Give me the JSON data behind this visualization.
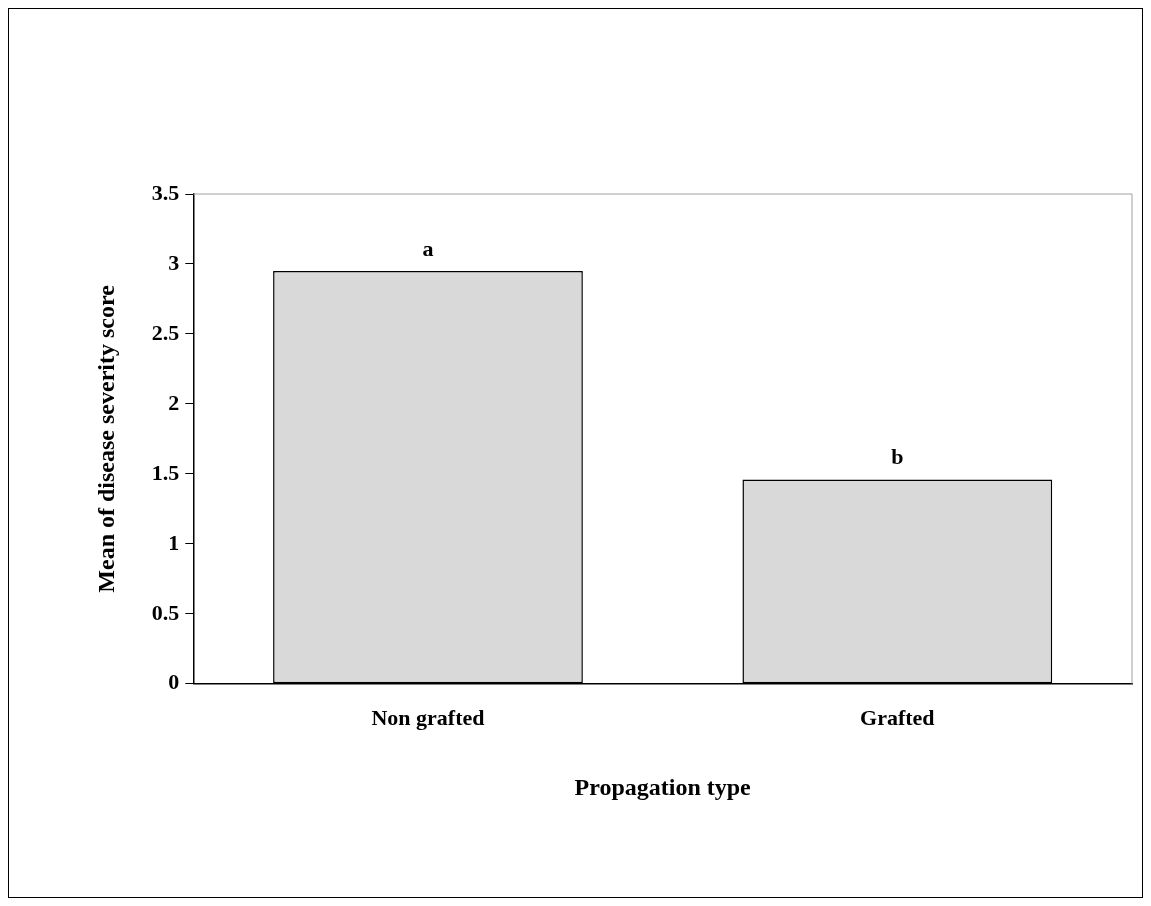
{
  "chart_data": {
    "type": "bar",
    "xlabel": "Propagation type",
    "ylabel": "Mean of disease severity score",
    "categories": [
      "Non grafted",
      "Grafted"
    ],
    "values": [
      2.95,
      1.46
    ],
    "color": "#d9d9d9",
    "ylim": [
      0,
      3.5
    ],
    "yticks": [
      0,
      0.5,
      1,
      1.5,
      2,
      2.5,
      3,
      3.5
    ],
    "grid": false,
    "legend": false,
    "annotations": [
      {
        "text": "a",
        "x": "Non grafted",
        "y": 2.95
      },
      {
        "text": "b",
        "x": "Grafted",
        "y": 1.46
      }
    ]
  }
}
